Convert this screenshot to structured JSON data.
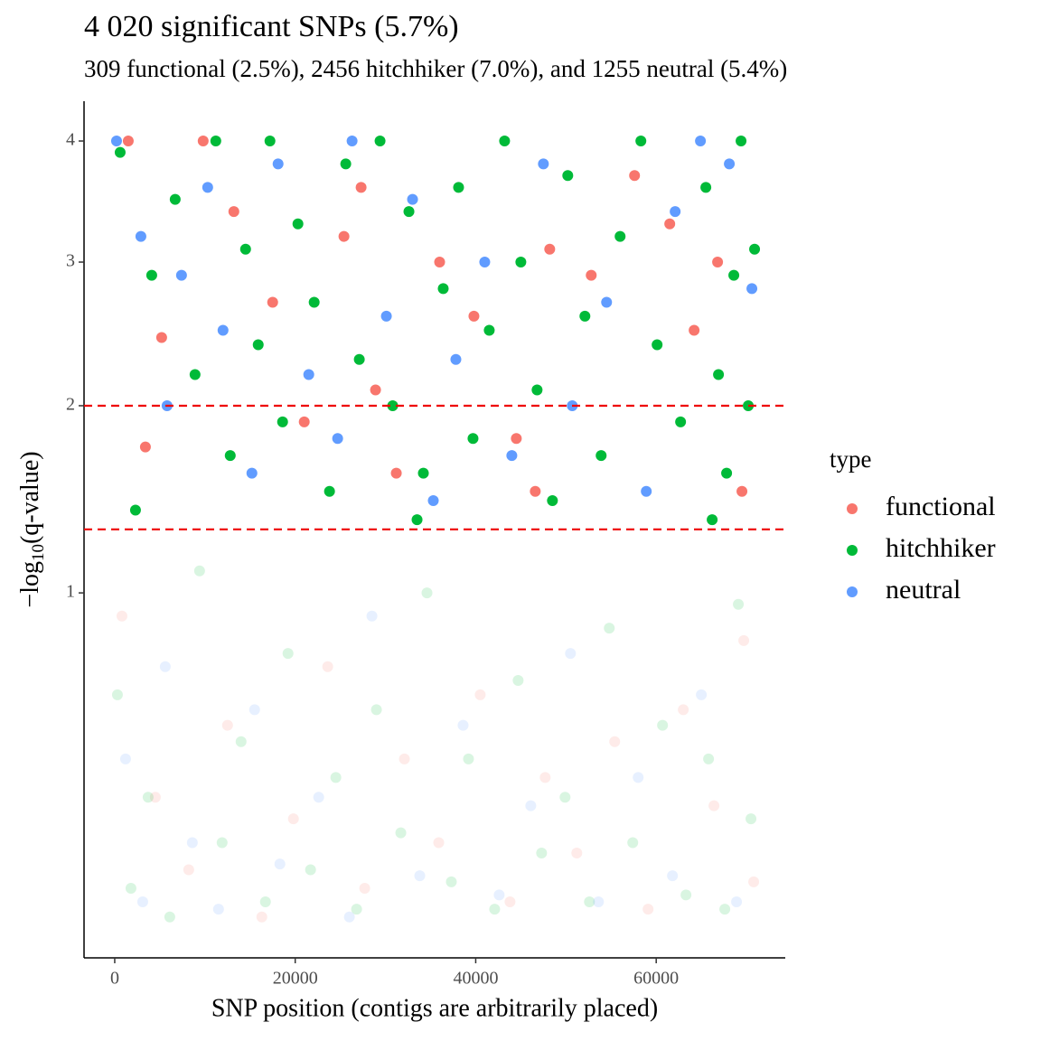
{
  "chart_data": {
    "type": "scatter",
    "title": "4 020 significant SNPs (5.7%)",
    "subtitle": "309 functional (2.5%), 2456 hitchhiker (7.0%), and 1255 neutral (5.4%)",
    "x_label": "SNP position (contigs are arbitrarily placed)",
    "y_label": [
      "−log",
      "10",
      "(q-value)"
    ],
    "legend_title": "type",
    "y_scale": "sqrt",
    "xlim": [
      -3400,
      74300
    ],
    "ylim": [
      0.037,
      4.36
    ],
    "xticks": [
      0,
      20000,
      40000,
      60000
    ],
    "yticks": [
      1,
      2,
      3,
      4
    ],
    "hlines": [
      2,
      1.301
    ],
    "hline_color": "#ee0000",
    "series": [
      {
        "name": "functional",
        "color": "#F8766D",
        "x": [
          1500,
          5200,
          9800,
          13200,
          17500,
          21000,
          25400,
          28900,
          31200,
          36000,
          39800,
          44500,
          48200,
          52800,
          57600,
          61500,
          64200,
          66800,
          69500,
          3400,
          27300,
          46600,
          800,
          4500,
          8200,
          12500,
          16300,
          19800,
          23600,
          27700,
          32100,
          35900,
          40500,
          43800,
          47700,
          51200,
          55400,
          59100,
          63000,
          66400,
          69700,
          70800
        ],
        "values": [
          4,
          2.45,
          4,
          3.4,
          2.7,
          1.9,
          3.2,
          2.1,
          1.6,
          3.0,
          2.6,
          1.8,
          3.1,
          2.9,
          3.7,
          3.3,
          2.5,
          3.0,
          1.5,
          1.75,
          3.6,
          1.5,
          0.9,
          0.3,
          0.15,
          0.5,
          0.08,
          0.25,
          0.7,
          0.12,
          0.4,
          0.2,
          0.6,
          0.1,
          0.35,
          0.18,
          0.45,
          0.09,
          0.55,
          0.28,
          0.8,
          0.13
        ]
      },
      {
        "name": "hitchhiker",
        "color": "#00BA38",
        "x": [
          600,
          2300,
          4100,
          6700,
          8900,
          11200,
          12800,
          14500,
          15900,
          17200,
          18600,
          20300,
          22100,
          23800,
          25600,
          27100,
          29400,
          30800,
          32600,
          34200,
          36400,
          38100,
          39700,
          41500,
          43200,
          45000,
          46800,
          48500,
          50200,
          52100,
          53900,
          56000,
          58300,
          60100,
          62700,
          65500,
          66900,
          67800,
          68600,
          69400,
          70200,
          70900,
          66200,
          33500,
          300,
          1800,
          3700,
          6100,
          9400,
          11900,
          14000,
          16700,
          19200,
          21700,
          24500,
          26800,
          29000,
          31700,
          34600,
          37300,
          39200,
          42100,
          44700,
          47300,
          49900,
          52600,
          54800,
          57400,
          60700,
          63300,
          65800,
          67600,
          69100,
          70500
        ],
        "values": [
          3.9,
          1.4,
          2.9,
          3.5,
          2.2,
          4,
          1.7,
          3.1,
          2.4,
          4,
          1.9,
          3.3,
          2.7,
          1.5,
          3.8,
          2.3,
          4,
          2.0,
          3.4,
          1.6,
          2.8,
          3.6,
          1.8,
          2.5,
          4,
          3.0,
          2.1,
          1.45,
          3.7,
          2.6,
          1.7,
          3.2,
          4,
          2.4,
          1.9,
          3.6,
          2.2,
          1.6,
          2.9,
          4,
          2.0,
          3.1,
          1.35,
          1.35,
          0.6,
          0.12,
          0.3,
          0.08,
          1.1,
          0.2,
          0.45,
          0.1,
          0.75,
          0.15,
          0.35,
          0.09,
          0.55,
          0.22,
          1.0,
          0.13,
          0.4,
          0.09,
          0.65,
          0.18,
          0.3,
          0.1,
          0.85,
          0.2,
          0.5,
          0.11,
          0.4,
          0.09,
          0.95,
          0.25
        ]
      },
      {
        "name": "neutral",
        "color": "#619CFF",
        "x": [
          200,
          2900,
          5800,
          7400,
          10300,
          12000,
          15200,
          18100,
          21500,
          24700,
          26300,
          30100,
          33000,
          35300,
          37800,
          41000,
          44000,
          47500,
          50700,
          54500,
          58900,
          62100,
          64900,
          68100,
          70600,
          1200,
          3100,
          5600,
          8600,
          11500,
          15500,
          18300,
          22600,
          26000,
          28500,
          33800,
          38600,
          42600,
          46100,
          50500,
          53600,
          58000,
          61800,
          65000,
          68900
        ],
        "values": [
          4,
          3.2,
          2.0,
          2.9,
          3.6,
          2.5,
          1.6,
          3.8,
          2.2,
          1.8,
          4,
          2.6,
          3.5,
          1.45,
          2.3,
          3.0,
          1.7,
          3.8,
          2.0,
          2.7,
          1.5,
          3.4,
          4,
          3.8,
          2.8,
          0.4,
          0.1,
          0.7,
          0.2,
          0.09,
          0.55,
          0.16,
          0.3,
          0.08,
          0.9,
          0.14,
          0.5,
          0.11,
          0.28,
          0.75,
          0.1,
          0.35,
          0.14,
          0.6,
          0.1
        ]
      }
    ]
  }
}
